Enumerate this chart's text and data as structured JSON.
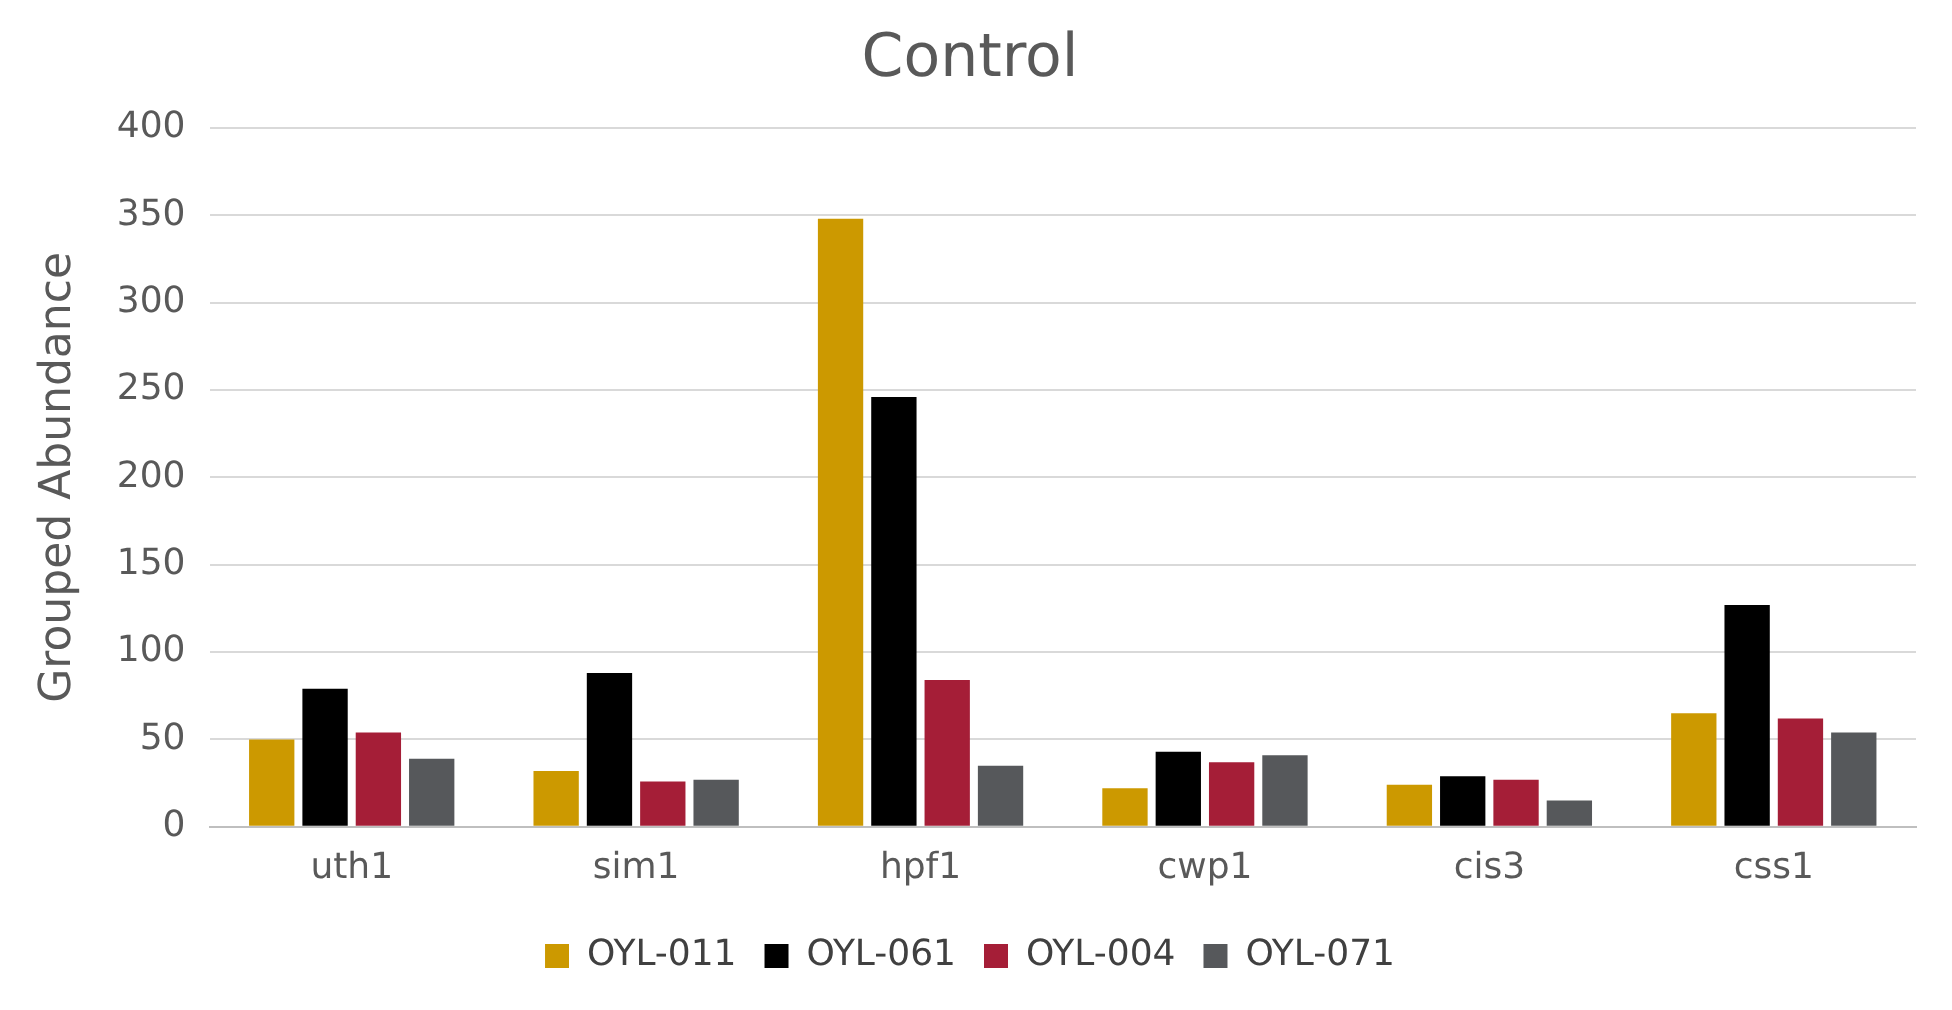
{
  "chart_data": {
    "type": "bar",
    "title": "Control",
    "ylabel": "Grouped Abundance",
    "categories": [
      "uth1",
      "sim1",
      "hpf1",
      "cwp1",
      "cis3",
      "css1"
    ],
    "series": [
      {
        "name": "OYL-011",
        "color": "#cc9900",
        "values": [
          50,
          32,
          348,
          22,
          24,
          65
        ]
      },
      {
        "name": "OYL-061",
        "color": "#000000",
        "values": [
          79,
          88,
          246,
          43,
          29,
          127
        ]
      },
      {
        "name": "OYL-004",
        "color": "#a51e37",
        "values": [
          54,
          26,
          84,
          37,
          27,
          62
        ]
      },
      {
        "name": "OYL-071",
        "color": "#56585b",
        "values": [
          39,
          27,
          35,
          41,
          15,
          54
        ]
      }
    ],
    "ylim": [
      0,
      400
    ],
    "yticks": [
      0,
      50,
      100,
      150,
      200,
      250,
      300,
      350,
      400
    ],
    "grid": "y",
    "legend": "bottom"
  }
}
